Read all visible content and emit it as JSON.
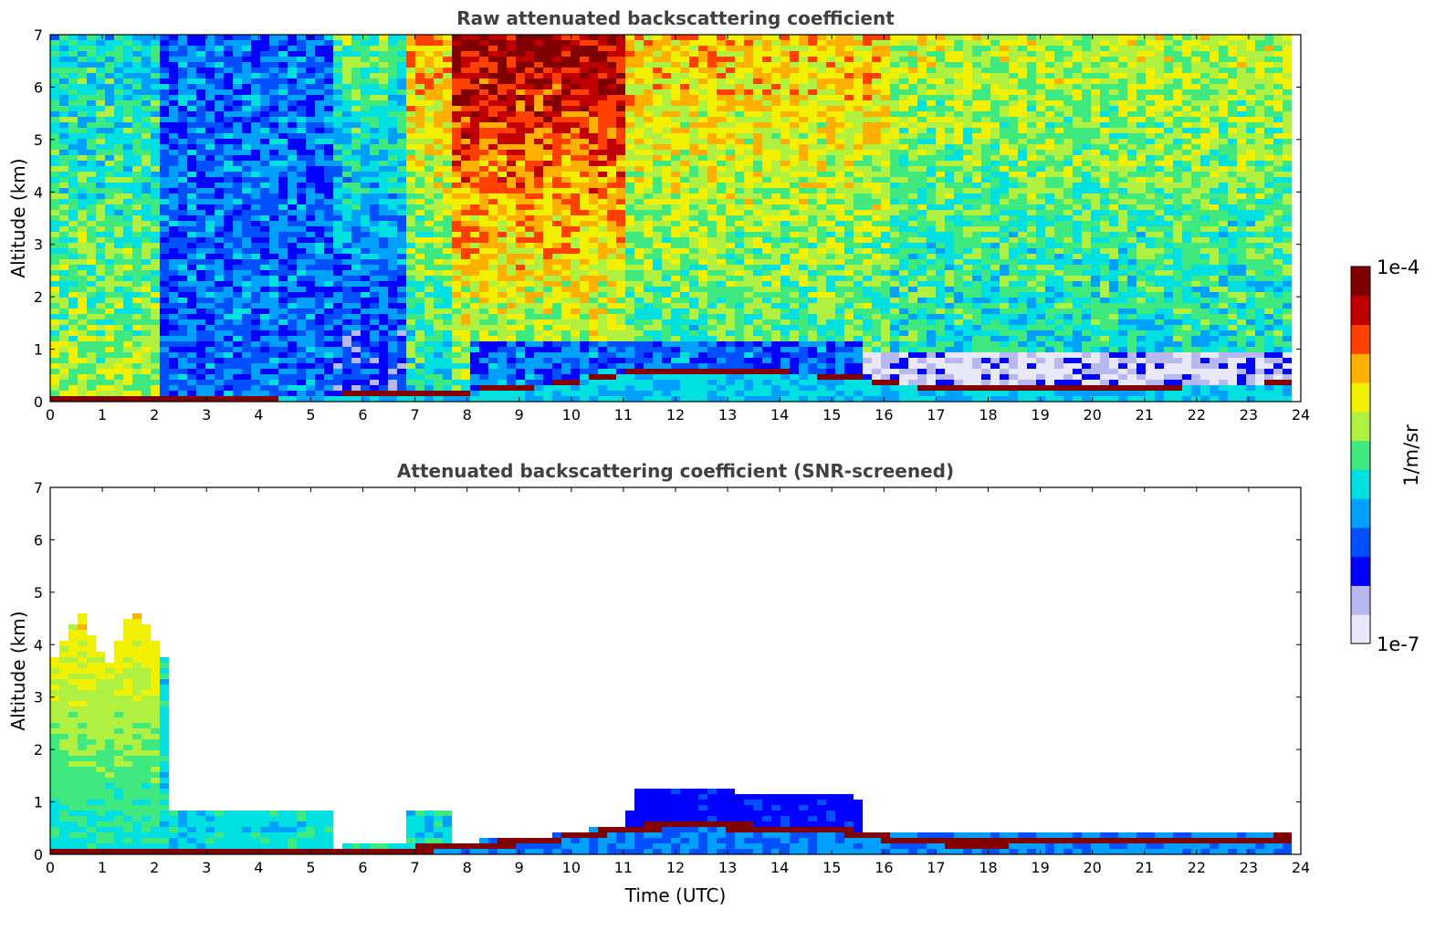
{
  "chart_data": [
    {
      "type": "heatmap",
      "title": "Raw attenuated backscattering coefficient",
      "xlabel": "",
      "ylabel": "Altitude (km)",
      "xlim": [
        0,
        24
      ],
      "ylim": [
        0,
        7
      ],
      "x_ticks": [
        "0",
        "1",
        "2",
        "3",
        "4",
        "5",
        "6",
        "7",
        "8",
        "9",
        "10",
        "11",
        "12",
        "13",
        "14",
        "15",
        "16",
        "17",
        "18",
        "19",
        "20",
        "21",
        "22",
        "23",
        "24"
      ],
      "y_ticks": [
        "0",
        "1",
        "2",
        "3",
        "4",
        "5",
        "6",
        "7"
      ],
      "screened": false,
      "layer_top_km": [
        [
          0,
          0.05
        ],
        [
          1,
          0.07
        ],
        [
          2,
          0.08
        ],
        [
          4,
          0.1
        ],
        [
          5,
          0.12
        ],
        [
          6,
          0.14
        ],
        [
          7,
          0.15
        ],
        [
          7.7,
          0.18
        ],
        [
          8,
          0.22
        ],
        [
          9,
          0.28
        ],
        [
          10,
          0.4
        ],
        [
          11,
          0.55
        ],
        [
          12,
          0.6
        ],
        [
          13,
          0.58
        ],
        [
          14,
          0.55
        ],
        [
          15,
          0.5
        ],
        [
          15.5,
          0.45
        ],
        [
          16,
          0.36
        ],
        [
          17,
          0.27
        ],
        [
          18,
          0.26
        ],
        [
          19,
          0.3
        ],
        [
          20,
          0.27
        ],
        [
          21,
          0.3
        ],
        [
          22,
          0.32
        ],
        [
          23,
          0.33
        ],
        [
          23.8,
          0.38
        ]
      ]
    },
    {
      "type": "heatmap",
      "title": "Attenuated backscattering coefficient (SNR-screened)",
      "xlabel": "Time (UTC)",
      "ylabel": "Altitude (km)",
      "xlim": [
        0,
        24
      ],
      "ylim": [
        0,
        7
      ],
      "x_ticks": [
        "0",
        "1",
        "2",
        "3",
        "4",
        "5",
        "6",
        "7",
        "8",
        "9",
        "10",
        "11",
        "12",
        "13",
        "14",
        "15",
        "16",
        "17",
        "18",
        "19",
        "20",
        "21",
        "22",
        "23",
        "24"
      ],
      "y_ticks": [
        "0",
        "1",
        "2",
        "3",
        "4",
        "5",
        "6",
        "7"
      ],
      "screened": true,
      "signal_top_km": [
        [
          0,
          3.8
        ],
        [
          0.5,
          4.7
        ],
        [
          1,
          3.6
        ],
        [
          1.5,
          4.8
        ],
        [
          2.1,
          3.9
        ],
        [
          2.2,
          0.9
        ],
        [
          5.3,
          0.9
        ],
        [
          5.4,
          0.1
        ],
        [
          6.7,
          0.1
        ],
        [
          6.8,
          0.85
        ],
        [
          7.6,
          0.9
        ],
        [
          7.7,
          0.2
        ],
        [
          11,
          0.6
        ],
        [
          11.1,
          1.3
        ],
        [
          15.4,
          1.2
        ],
        [
          15.5,
          0.5
        ],
        [
          23.8,
          0.45
        ]
      ]
    }
  ],
  "colorbar": {
    "label": "1/m/sr",
    "max_label": "1e-4",
    "min_label": "1e-7",
    "scale": "log",
    "range": [
      1e-07,
      0.0001
    ],
    "colormap": [
      "#e8e8f8",
      "#b8b8f0",
      "#0000ff",
      "#0050ff",
      "#00a0ff",
      "#00e0e0",
      "#40e880",
      "#b0f040",
      "#f0f000",
      "#ffb000",
      "#ff4000",
      "#c00000",
      "#800000"
    ]
  }
}
